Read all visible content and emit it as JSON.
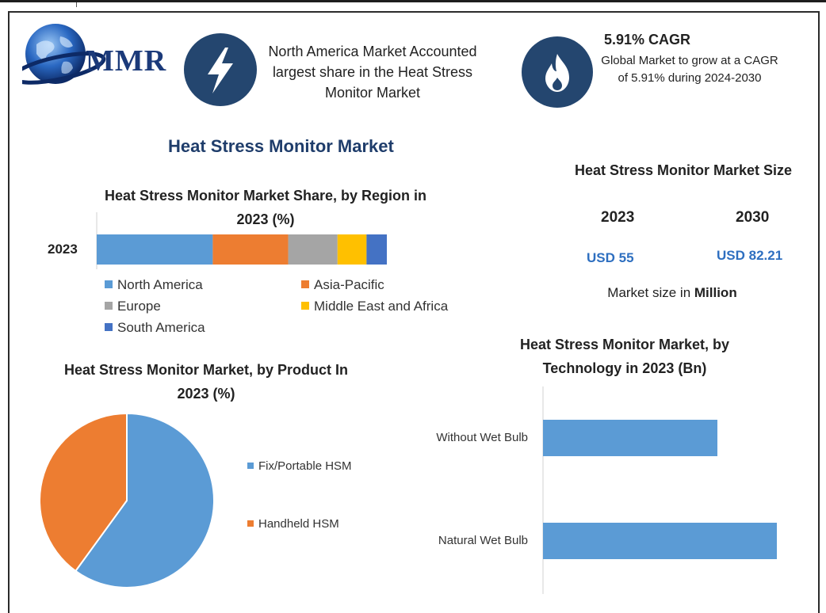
{
  "header": {
    "brand": "MMR",
    "highlight_text": "North America Market Accounted largest share in the Heat Stress Monitor Market",
    "cagr_title": "5.91% CAGR",
    "cagr_text": "Global Market to grow at a CAGR of 5.91% during 2024-2030"
  },
  "main_title": "Heat Stress Monitor Market",
  "market_size": {
    "title": "Heat Stress Monitor Market Size",
    "year_a": "2023",
    "year_b": "2030",
    "value_a": "USD 55",
    "value_b": "USD 82.21",
    "unit_prefix": "Market size in ",
    "unit_strong": "Million"
  },
  "colors": {
    "north_america": "#5b9bd5",
    "asia_pacific": "#ed7d31",
    "europe": "#a5a5a5",
    "mea": "#ffc000",
    "south_america": "#4472c4",
    "navy": "#24466f"
  },
  "icons": [
    "globe-logo-icon",
    "lightning-icon",
    "flame-icon"
  ],
  "chart_data": [
    {
      "type": "bar",
      "orientation": "horizontal-stacked",
      "title": "Heat Stress Monitor Market Share, by Region in 2023 (%)",
      "categories": [
        "2023"
      ],
      "series": [
        {
          "name": "North America",
          "values": [
            40
          ],
          "color": "#5b9bd5"
        },
        {
          "name": "Asia-Pacific",
          "values": [
            26
          ],
          "color": "#ed7d31"
        },
        {
          "name": "Europe",
          "values": [
            17
          ],
          "color": "#a5a5a5"
        },
        {
          "name": "Middle East and Africa",
          "values": [
            10
          ],
          "color": "#ffc000"
        },
        {
          "name": "South America",
          "values": [
            7
          ],
          "color": "#4472c4"
        }
      ],
      "legend": "bottom"
    },
    {
      "type": "pie",
      "title": "Heat Stress Monitor Market, by Product In 2023 (%)",
      "labels": [
        "Fix/Portable HSM",
        "Handheld HSM"
      ],
      "values": [
        60,
        40
      ],
      "colors": [
        "#5b9bd5",
        "#ed7d31"
      ],
      "legend": "right"
    },
    {
      "type": "bar",
      "orientation": "horizontal",
      "title": "Heat Stress Monitor Market, by Technology in 2023 (Bn)",
      "categories": [
        "Without Wet Bulb",
        "Natural Wet Bulb"
      ],
      "values": [
        22,
        29.5
      ],
      "xlim": [
        0,
        30
      ],
      "color": "#5b9bd5",
      "grid": false
    }
  ]
}
